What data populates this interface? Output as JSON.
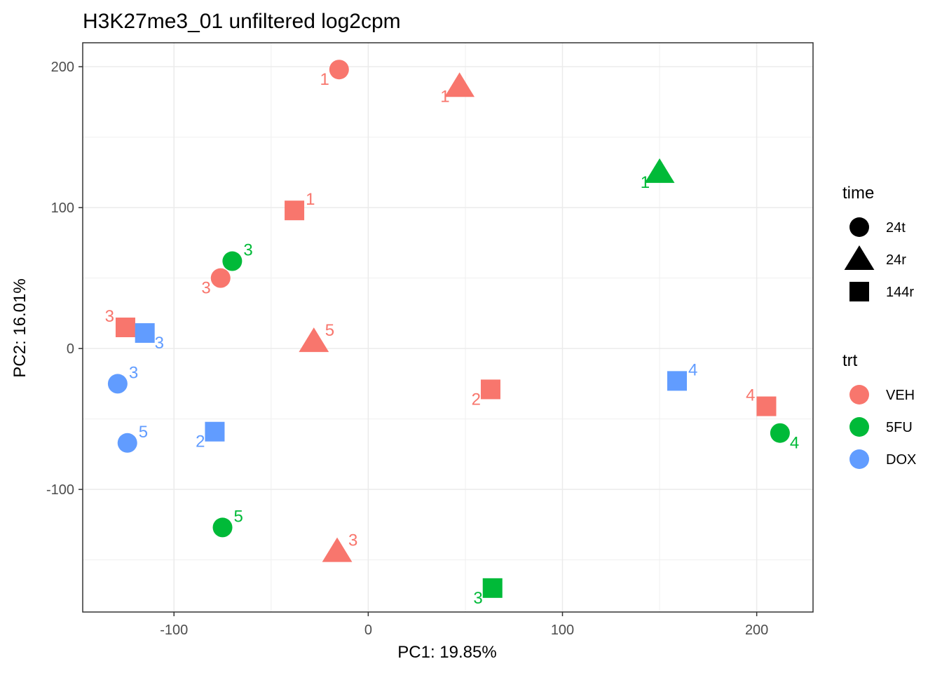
{
  "chart_data": {
    "type": "scatter",
    "title": "H3K27me3_01 unfiltered log2cpm",
    "xlabel": "PC1: 19.85%",
    "ylabel": "PC2: 16.01%",
    "xlim": [
      -147,
      229
    ],
    "ylim": [
      -187,
      217
    ],
    "xticks": [
      -100,
      0,
      100,
      200
    ],
    "xtick_labels": [
      "-100",
      "0",
      "100",
      "200"
    ],
    "yticks": [
      -100,
      0,
      100,
      200
    ],
    "ytick_labels": [
      "-100",
      "0",
      "100",
      "200"
    ],
    "xminor": [
      -50,
      50,
      150
    ],
    "yminor": [
      -150,
      -50,
      50,
      150
    ],
    "grid": true,
    "legend_position": "right",
    "colors": {
      "VEH": "#F8766D",
      "5FU": "#00BA38",
      "DOX": "#619CFF"
    },
    "legends": [
      {
        "title": "time",
        "kind": "shape",
        "entries": [
          {
            "label": "24t",
            "shape": "circle"
          },
          {
            "label": "24r",
            "shape": "triangle"
          },
          {
            "label": "144r",
            "shape": "square"
          }
        ]
      },
      {
        "title": "trt",
        "kind": "color",
        "entries": [
          {
            "label": "VEH",
            "trt": "VEH"
          },
          {
            "label": "5FU",
            "trt": "5FU"
          },
          {
            "label": "DOX",
            "trt": "DOX"
          }
        ]
      }
    ],
    "points": [
      {
        "x": -15,
        "y": 198,
        "time": "24t",
        "trt": "VEH",
        "label": "1",
        "label_pos": "below-left"
      },
      {
        "x": 47,
        "y": 186,
        "time": "24r",
        "trt": "VEH",
        "label": "1",
        "label_pos": "below-left"
      },
      {
        "x": -38,
        "y": 98,
        "time": "144r",
        "trt": "VEH",
        "label": "1",
        "label_pos": "above-right"
      },
      {
        "x": -76,
        "y": 50,
        "time": "24t",
        "trt": "VEH",
        "label": "3",
        "label_pos": "below-left"
      },
      {
        "x": -125,
        "y": 15,
        "time": "144r",
        "trt": "VEH",
        "label": "3",
        "label_pos": "above-left"
      },
      {
        "x": -28,
        "y": 5,
        "time": "24r",
        "trt": "VEH",
        "label": "5",
        "label_pos": "above-right"
      },
      {
        "x": 63,
        "y": -29,
        "time": "144r",
        "trt": "VEH",
        "label": "2",
        "label_pos": "below-left"
      },
      {
        "x": 205,
        "y": -41,
        "time": "144r",
        "trt": "VEH",
        "label": "4",
        "label_pos": "above-left"
      },
      {
        "x": -16,
        "y": -144,
        "time": "24r",
        "trt": "VEH",
        "label": "3",
        "label_pos": "above-right"
      },
      {
        "x": 150,
        "y": 125,
        "time": "24r",
        "trt": "5FU",
        "label": "1",
        "label_pos": "below-left"
      },
      {
        "x": -70,
        "y": 62,
        "time": "24t",
        "trt": "5FU",
        "label": "3",
        "label_pos": "above-right"
      },
      {
        "x": 212,
        "y": -60,
        "time": "24t",
        "trt": "5FU",
        "label": "4",
        "label_pos": "below-right"
      },
      {
        "x": -75,
        "y": -127,
        "time": "24t",
        "trt": "5FU",
        "label": "5",
        "label_pos": "above-right"
      },
      {
        "x": 64,
        "y": -170,
        "time": "144r",
        "trt": "5FU",
        "label": "3",
        "label_pos": "below-left"
      },
      {
        "x": -115,
        "y": 11,
        "time": "144r",
        "trt": "DOX",
        "label": "3",
        "label_pos": "below-right"
      },
      {
        "x": -129,
        "y": -25,
        "time": "24t",
        "trt": "DOX",
        "label": "3",
        "label_pos": "above-right"
      },
      {
        "x": -124,
        "y": -67,
        "time": "24t",
        "trt": "DOX",
        "label": "5",
        "label_pos": "above-right"
      },
      {
        "x": -79,
        "y": -59,
        "time": "144r",
        "trt": "DOX",
        "label": "2",
        "label_pos": "below-left"
      },
      {
        "x": 159,
        "y": -23,
        "time": "144r",
        "trt": "DOX",
        "label": "4",
        "label_pos": "above-right"
      }
    ]
  }
}
